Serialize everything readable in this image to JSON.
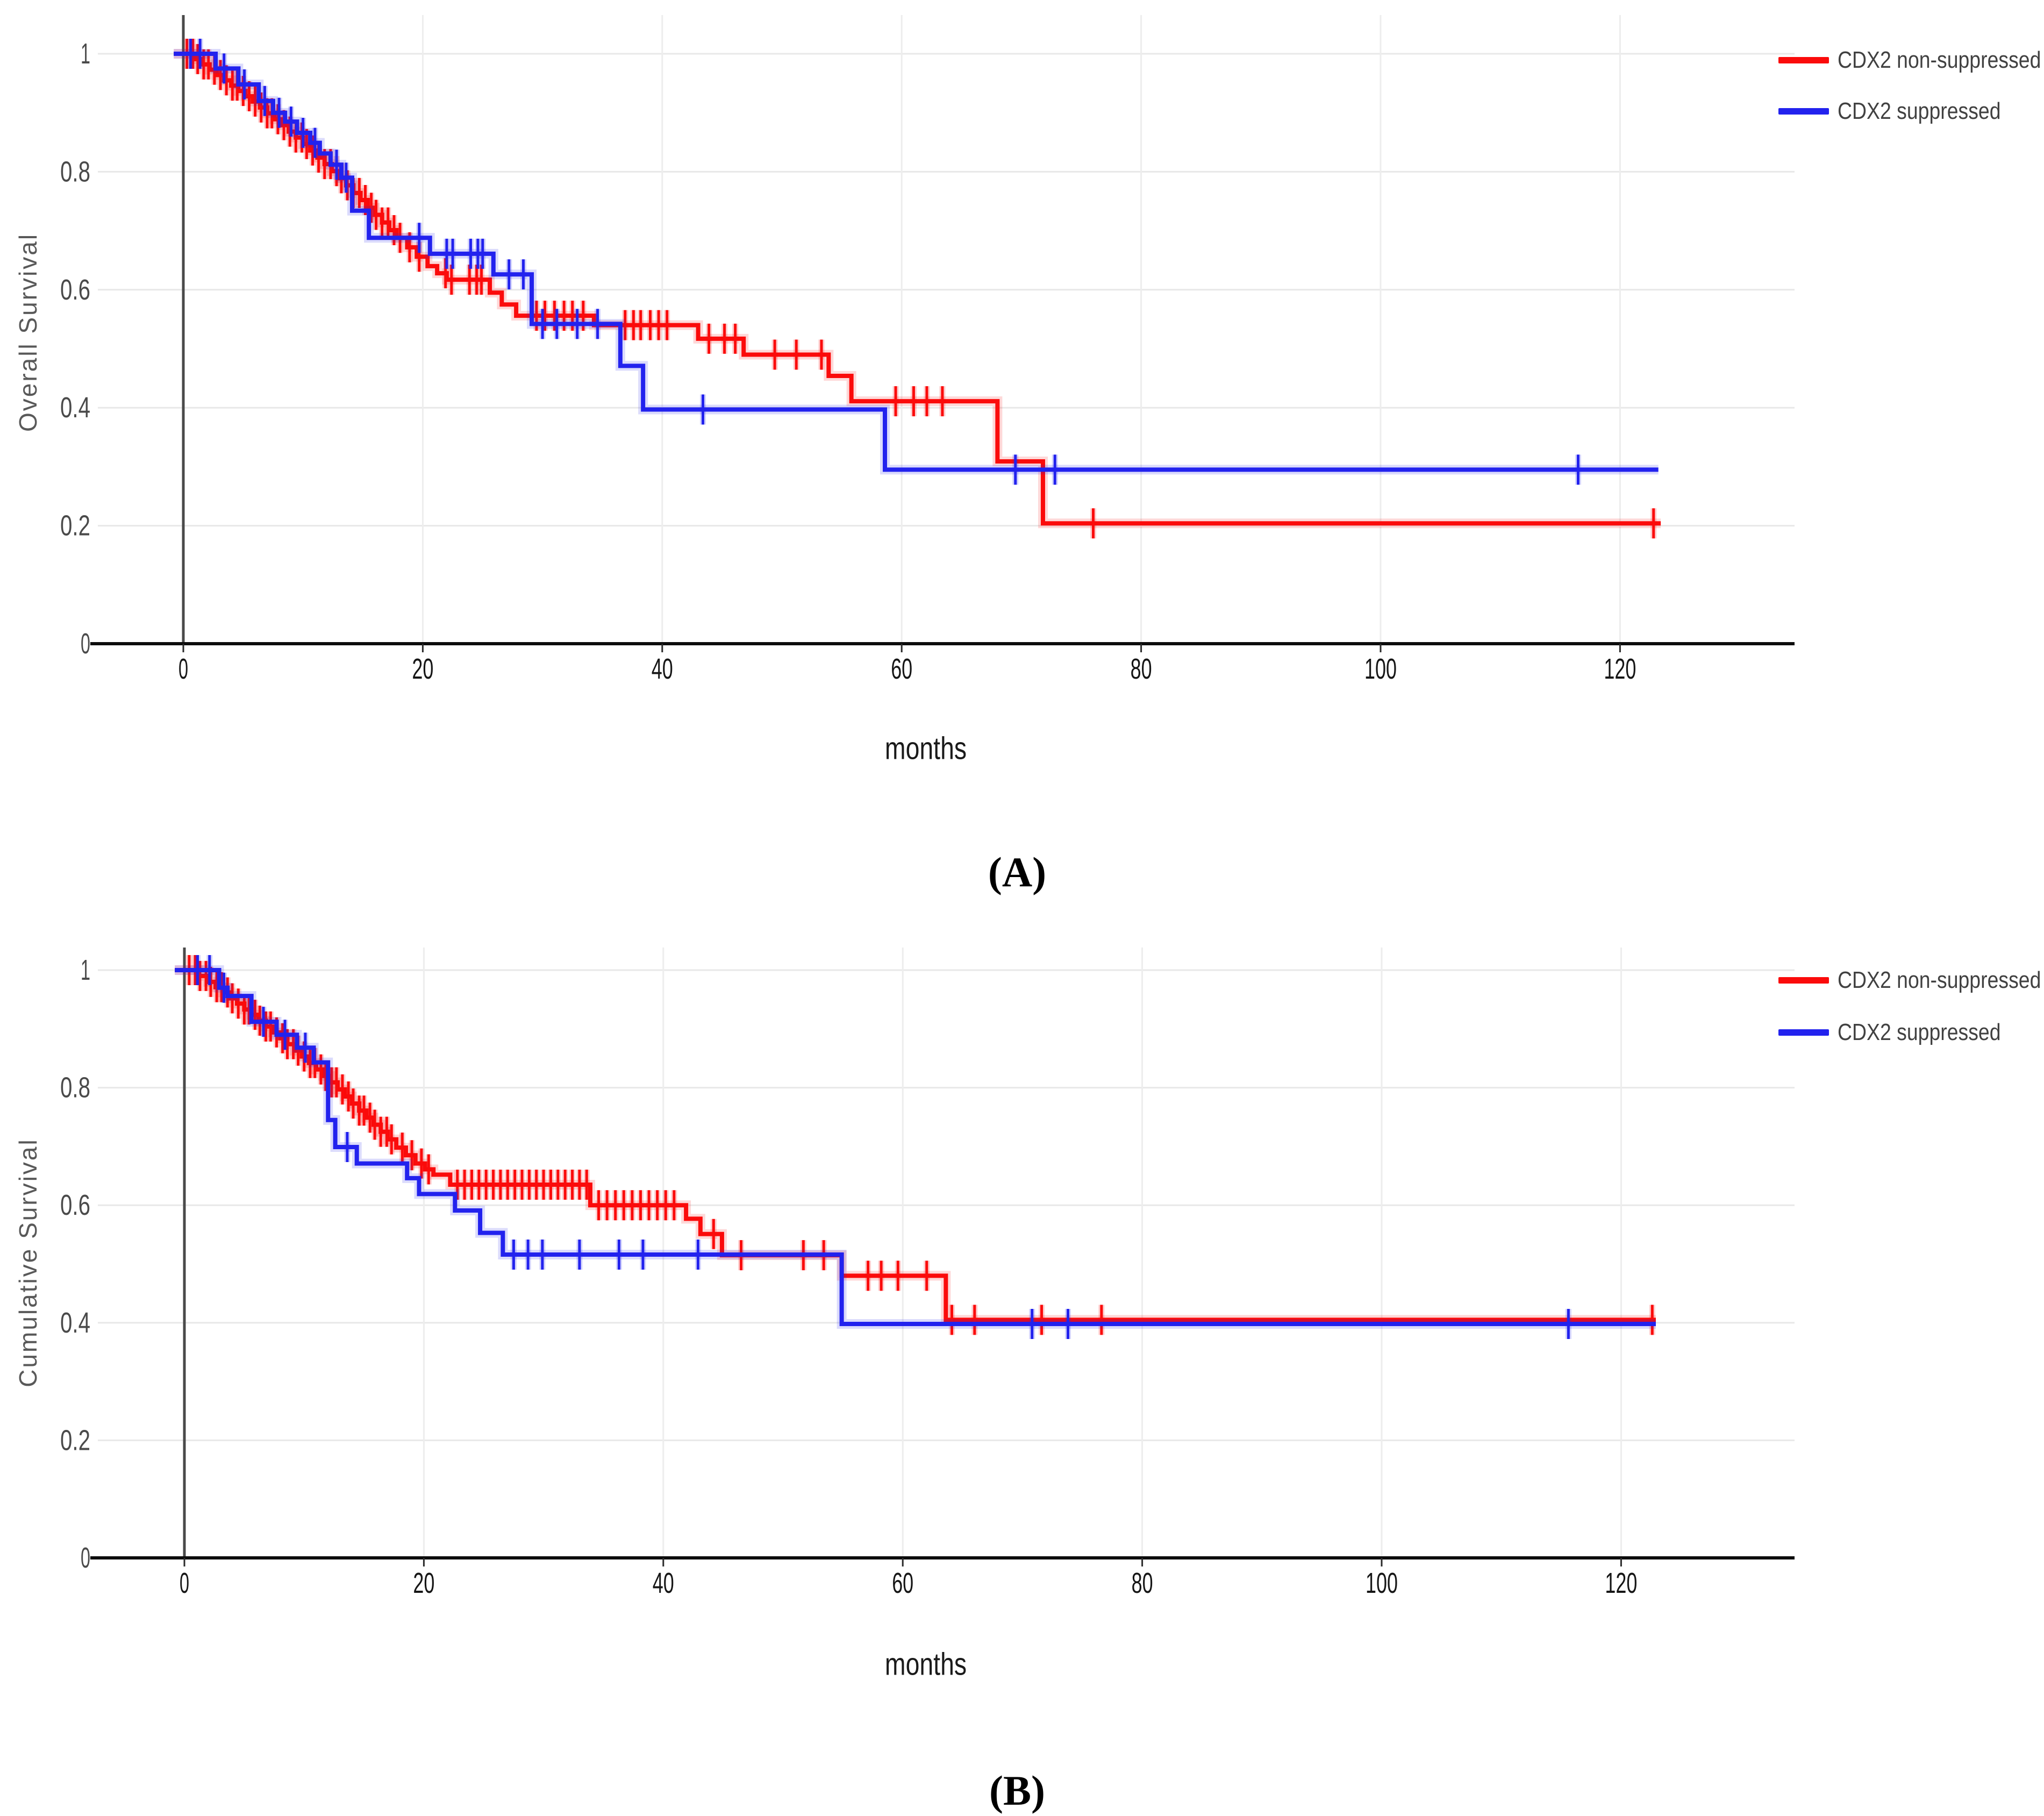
{
  "figure_type": "kaplan-meier-survival-figure",
  "panel_count": 2,
  "colors": {
    "series_red": "#fb0b0b",
    "series_blue": "#2222ee",
    "grid": "#e8e8e8",
    "axis": "#0c0c0c",
    "tick_label": "#161616",
    "y_axis_title": "#595959",
    "legend_text": "#414141"
  },
  "chart_data": [
    {
      "type": "line",
      "subtype": "kaplan-meier-step",
      "panel_id": "A",
      "panel_label": "(A)",
      "title": "",
      "xlabel": "months",
      "ylabel": "Overall Survival",
      "x_ticks": [
        0,
        20,
        40,
        60,
        80,
        100,
        120
      ],
      "y_ticks": [
        1,
        0.8,
        0.6,
        0.4,
        0.2,
        0
      ],
      "xlim": [
        -8,
        134
      ],
      "ylim": [
        0,
        1.09
      ],
      "grid": true,
      "legend_position": "outside-top-right",
      "series": [
        {
          "name": "CDX2 non-suppressed",
          "color": "#fb0b0b",
          "start_month": -0.8,
          "end_month": 123.4,
          "steps": [
            [
              1.0,
              0.991
            ],
            [
              1.6,
              0.982
            ],
            [
              2.2,
              0.973
            ],
            [
              2.8,
              0.964
            ],
            [
              3.4,
              0.955
            ],
            [
              4.0,
              0.946
            ],
            [
              4.6,
              0.937
            ],
            [
              5.2,
              0.928
            ],
            [
              5.8,
              0.919
            ],
            [
              6.4,
              0.909
            ],
            [
              7.0,
              0.899
            ],
            [
              7.6,
              0.889
            ],
            [
              8.2,
              0.879
            ],
            [
              8.8,
              0.868
            ],
            [
              9.4,
              0.858
            ],
            [
              10.0,
              0.847
            ],
            [
              10.6,
              0.836
            ],
            [
              11.2,
              0.824
            ],
            [
              11.8,
              0.813
            ],
            [
              12.4,
              0.801
            ],
            [
              13.0,
              0.789
            ],
            [
              13.6,
              0.777
            ],
            [
              14.2,
              0.764
            ],
            [
              14.8,
              0.752
            ],
            [
              15.4,
              0.739
            ],
            [
              16.0,
              0.727
            ],
            [
              16.6,
              0.714
            ],
            [
              17.2,
              0.701
            ],
            [
              17.8,
              0.688
            ],
            [
              18.7,
              0.672
            ],
            [
              19.5,
              0.656
            ],
            [
              20.4,
              0.64
            ],
            [
              21.2,
              0.628
            ],
            [
              22.0,
              0.617
            ],
            [
              25.6,
              0.595
            ],
            [
              26.6,
              0.575
            ],
            [
              27.8,
              0.556
            ],
            [
              34.3,
              0.54
            ],
            [
              43.0,
              0.517
            ],
            [
              46.8,
              0.49
            ],
            [
              53.9,
              0.454
            ],
            [
              55.8,
              0.411
            ],
            [
              68.0,
              0.309
            ],
            [
              71.8,
              0.204
            ]
          ],
          "censor_months": [
            0.3,
            0.8,
            1.2,
            1.7,
            2.1,
            2.6,
            3.1,
            3.6,
            4.1,
            4.5,
            5.0,
            5.5,
            6.0,
            6.5,
            7.0,
            7.4,
            7.9,
            8.4,
            8.9,
            9.4,
            9.9,
            10.3,
            10.8,
            11.3,
            11.8,
            12.3,
            12.8,
            13.2,
            13.7,
            14.2,
            14.7,
            15.2,
            15.7,
            16.1,
            16.6,
            17.1,
            17.6,
            18.1,
            18.9,
            19.7,
            21.9,
            22.4,
            23.9,
            24.5,
            24.9,
            29.5,
            30.2,
            31.0,
            31.8,
            32.5,
            33.4,
            36.9,
            37.6,
            38.2,
            39.0,
            39.7,
            40.4,
            43.9,
            45.2,
            46.1,
            49.4,
            51.2,
            53.3,
            59.5,
            61.0,
            62.1,
            63.4,
            76.0,
            122.8
          ]
        },
        {
          "name": "CDX2 suppressed",
          "color": "#2222ee",
          "start_month": -0.8,
          "end_month": 123.2,
          "steps": [
            [
              2.7,
              0.975
            ],
            [
              4.6,
              0.948
            ],
            [
              6.3,
              0.92
            ],
            [
              7.5,
              0.9
            ],
            [
              8.5,
              0.885
            ],
            [
              9.5,
              0.866
            ],
            [
              10.6,
              0.849
            ],
            [
              11.4,
              0.831
            ],
            [
              12.3,
              0.812
            ],
            [
              13.2,
              0.79
            ],
            [
              14.1,
              0.734
            ],
            [
              15.5,
              0.688
            ],
            [
              20.6,
              0.661
            ],
            [
              25.9,
              0.626
            ],
            [
              29.1,
              0.542
            ],
            [
              36.5,
              0.471
            ],
            [
              38.4,
              0.397
            ],
            [
              58.6,
              0.295
            ]
          ],
          "censor_months": [
            0.6,
            1.4,
            3.4,
            5.1,
            6.8,
            8.0,
            9.0,
            10.0,
            11.0,
            12.8,
            13.6,
            19.7,
            22.0,
            22.5,
            24.0,
            24.6,
            25.0,
            27.2,
            28.4,
            30.0,
            31.2,
            32.9,
            34.6,
            43.4,
            69.5,
            72.8,
            116.5
          ]
        }
      ]
    },
    {
      "type": "line",
      "subtype": "kaplan-meier-step",
      "panel_id": "B",
      "panel_label": "(B)",
      "title": "",
      "xlabel": "months",
      "ylabel": "Cumulative Survival",
      "x_ticks": [
        0,
        20,
        40,
        60,
        80,
        100,
        120
      ],
      "y_ticks": [
        1,
        0.8,
        0.6,
        0.4,
        0.2,
        0
      ],
      "xlim": [
        -8,
        134
      ],
      "ylim": [
        0,
        1.09
      ],
      "grid": true,
      "legend_position": "outside-top-right",
      "series": [
        {
          "name": "CDX2 non-suppressed",
          "color": "#fb0b0b",
          "start_month": -0.8,
          "end_month": 122.9,
          "steps": [
            [
              1.2,
              0.99
            ],
            [
              2.0,
              0.98
            ],
            [
              2.6,
              0.971
            ],
            [
              3.2,
              0.962
            ],
            [
              3.8,
              0.952
            ],
            [
              4.4,
              0.943
            ],
            [
              5.0,
              0.933
            ],
            [
              5.6,
              0.924
            ],
            [
              6.2,
              0.914
            ],
            [
              6.8,
              0.904
            ],
            [
              7.4,
              0.894
            ],
            [
              8.0,
              0.884
            ],
            [
              8.6,
              0.874
            ],
            [
              9.2,
              0.863
            ],
            [
              9.8,
              0.853
            ],
            [
              10.4,
              0.842
            ],
            [
              11.0,
              0.831
            ],
            [
              11.6,
              0.82
            ],
            [
              12.2,
              0.809
            ],
            [
              12.8,
              0.797
            ],
            [
              13.4,
              0.785
            ],
            [
              14.0,
              0.773
            ],
            [
              14.6,
              0.761
            ],
            [
              15.2,
              0.749
            ],
            [
              15.8,
              0.737
            ],
            [
              16.4,
              0.725
            ],
            [
              17.0,
              0.712
            ],
            [
              17.7,
              0.698
            ],
            [
              18.5,
              0.685
            ],
            [
              19.3,
              0.671
            ],
            [
              20.1,
              0.661
            ],
            [
              20.8,
              0.652
            ],
            [
              22.2,
              0.635
            ],
            [
              33.9,
              0.6
            ],
            [
              41.9,
              0.577
            ],
            [
              43.1,
              0.551
            ],
            [
              44.9,
              0.515
            ],
            [
              54.9,
              0.48
            ],
            [
              63.6,
              0.405
            ]
          ],
          "censor_months": [
            0.4,
            0.9,
            1.3,
            1.8,
            2.2,
            2.7,
            3.1,
            3.6,
            4.0,
            4.5,
            5.0,
            5.4,
            5.9,
            6.3,
            6.8,
            7.2,
            7.7,
            8.2,
            8.6,
            9.1,
            9.5,
            10.0,
            10.5,
            10.9,
            11.4,
            11.8,
            12.3,
            12.7,
            13.2,
            13.7,
            14.1,
            14.6,
            15.0,
            15.5,
            15.9,
            16.4,
            16.9,
            17.3,
            18.2,
            19.0,
            19.8,
            20.4,
            22.8,
            23.4,
            24.0,
            24.6,
            25.2,
            25.8,
            26.4,
            27.0,
            27.6,
            28.2,
            28.8,
            29.4,
            30.0,
            30.6,
            31.2,
            31.8,
            32.4,
            33.0,
            33.6,
            34.6,
            35.3,
            36.0,
            36.7,
            37.4,
            38.1,
            38.8,
            39.5,
            40.2,
            40.9,
            44.2,
            46.5,
            51.7,
            53.4,
            57.1,
            58.2,
            59.6,
            62.0,
            64.1,
            66.0,
            71.6,
            76.6,
            122.6
          ]
        },
        {
          "name": "CDX2 suppressed",
          "color": "#2222ee",
          "start_month": -0.8,
          "end_month": 122.9,
          "steps": [
            [
              2.9,
              0.97
            ],
            [
              3.6,
              0.956
            ],
            [
              5.6,
              0.912
            ],
            [
              7.7,
              0.89
            ],
            [
              9.4,
              0.868
            ],
            [
              10.8,
              0.843
            ],
            [
              12.0,
              0.745
            ],
            [
              12.6,
              0.699
            ],
            [
              14.4,
              0.671
            ],
            [
              18.6,
              0.646
            ],
            [
              19.6,
              0.619
            ],
            [
              22.6,
              0.591
            ],
            [
              24.7,
              0.553
            ],
            [
              26.6,
              0.516
            ],
            [
              54.9,
              0.398
            ]
          ],
          "censor_months": [
            1.1,
            2.1,
            3.3,
            6.6,
            8.4,
            10.1,
            13.6,
            27.5,
            28.7,
            29.9,
            33.0,
            36.3,
            38.3,
            42.9,
            70.8,
            73.8,
            115.6
          ]
        }
      ]
    }
  ]
}
